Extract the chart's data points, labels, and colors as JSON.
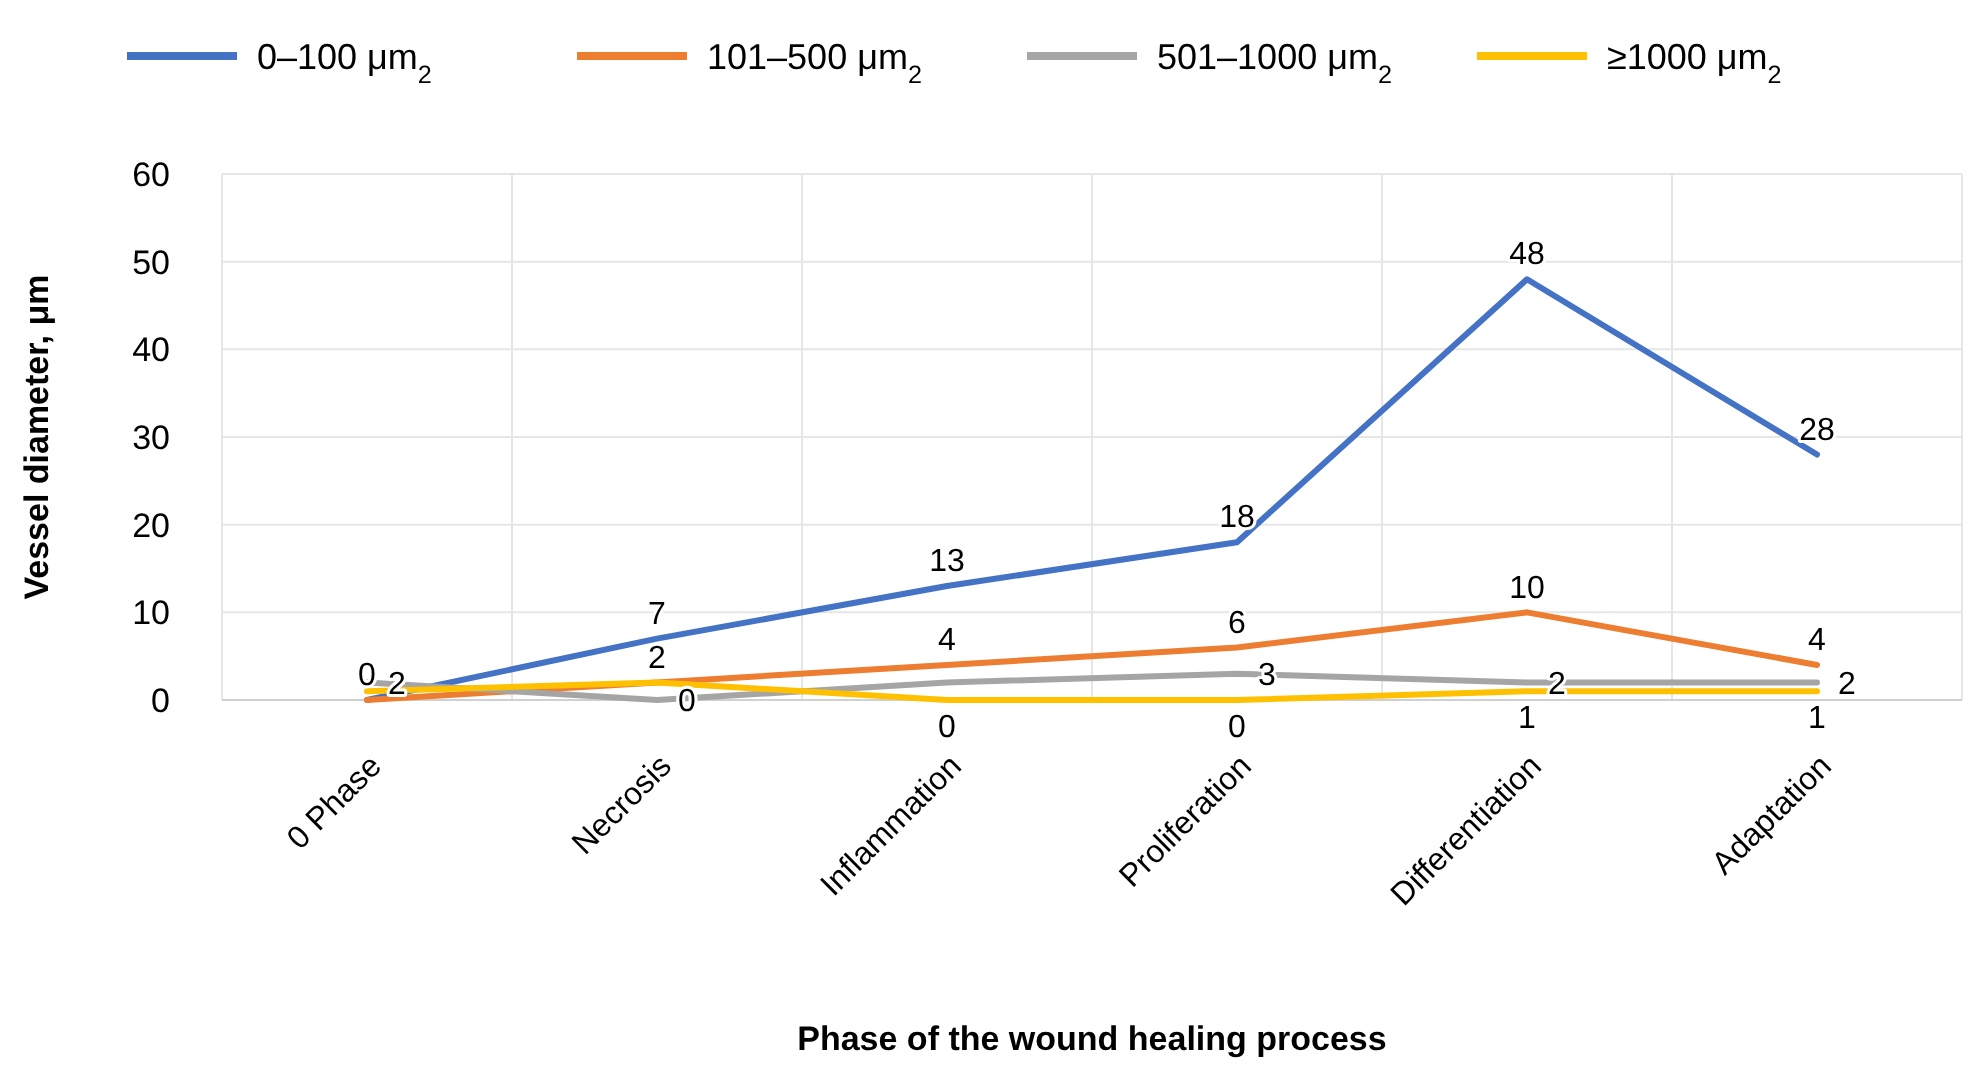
{
  "chart_data": {
    "type": "line",
    "xlabel": "Phase of the wound healing process",
    "ylabel": "Vessel diameter, μm",
    "categories": [
      "0 Phase",
      "Necrosis",
      "Inflammation",
      "Proliferation",
      "Differentiation",
      "Adaptation"
    ],
    "ylim": [
      0,
      60
    ],
    "yticks": [
      0,
      10,
      20,
      30,
      40,
      50,
      60
    ],
    "grid": true,
    "legend": "top",
    "marker": "none",
    "line_style": "solid",
    "series": [
      {
        "name": "0–100 μm$_{2}$",
        "color": "#4472c4",
        "values": [
          0,
          7,
          13,
          18,
          48,
          28
        ],
        "value_labels": [
          "0",
          "7",
          "13",
          "18",
          "48",
          "28"
        ]
      },
      {
        "name": "101–500 μm$_{2}$",
        "color": "#ed7d31",
        "values": [
          0,
          2,
          4,
          6,
          10,
          4
        ],
        "value_labels": [
          null,
          "2",
          "4",
          "6",
          "10",
          "4"
        ]
      },
      {
        "name": "501–1000 μm$_{2}$",
        "color": "#a5a5a5",
        "values": [
          2,
          0,
          2,
          3,
          2,
          2
        ],
        "value_labels": [
          "2",
          "0",
          null,
          "3",
          "2",
          "2"
        ]
      },
      {
        "name": "≥1000 μm$_{2}$",
        "color": "#ffc000",
        "values": [
          1,
          2,
          0,
          0,
          1,
          1
        ],
        "value_labels": [
          null,
          null,
          "0",
          "0",
          "1",
          "1"
        ]
      }
    ]
  }
}
